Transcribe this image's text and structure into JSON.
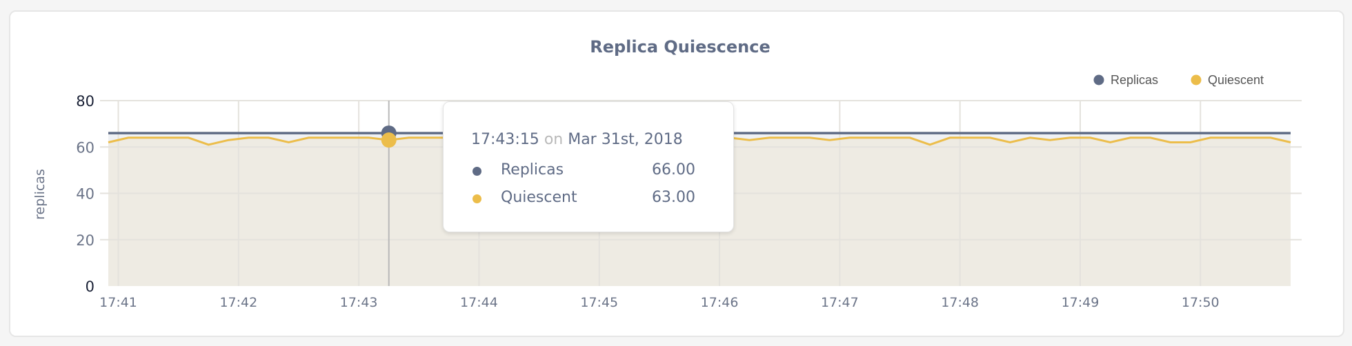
{
  "colors": {
    "replicas": "#5f6b85",
    "quiescent": "#ecbd4a",
    "quiescent_fill": "#eeebe3",
    "replicas_fill": "#eff1f4",
    "grid": "#e4e2dd"
  },
  "chart_data": {
    "type": "area",
    "title": "Replica Quiescence",
    "ylabel": "replicas",
    "xlabel": "",
    "ylim": [
      0,
      80
    ],
    "yticks": [
      "0",
      "20",
      "40",
      "60",
      "80"
    ],
    "xticks": [
      "17:41",
      "17:42",
      "17:43",
      "17:44",
      "17:45",
      "17:46",
      "17:47",
      "17:48",
      "17:49",
      "17:50"
    ],
    "grid": true,
    "legend_position": "top-right",
    "x": [
      "17:40:55",
      "17:41:05",
      "17:41:15",
      "17:41:25",
      "17:41:35",
      "17:41:45",
      "17:41:55",
      "17:42:05",
      "17:42:15",
      "17:42:25",
      "17:42:35",
      "17:42:45",
      "17:42:55",
      "17:43:05",
      "17:43:15",
      "17:43:25",
      "17:43:35",
      "17:43:45",
      "17:43:55",
      "17:44:05",
      "17:44:15",
      "17:44:25",
      "17:44:35",
      "17:44:45",
      "17:44:55",
      "17:45:05",
      "17:45:15",
      "17:45:25",
      "17:45:35",
      "17:45:45",
      "17:45:55",
      "17:46:05",
      "17:46:15",
      "17:46:25",
      "17:46:35",
      "17:46:45",
      "17:46:55",
      "17:47:05",
      "17:47:15",
      "17:47:25",
      "17:47:35",
      "17:47:45",
      "17:47:55",
      "17:48:05",
      "17:48:15",
      "17:48:25",
      "17:48:35",
      "17:48:45",
      "17:48:55",
      "17:49:05",
      "17:49:15",
      "17:49:25",
      "17:49:35",
      "17:49:45",
      "17:49:55",
      "17:50:05",
      "17:50:15",
      "17:50:25",
      "17:50:35",
      "17:50:45"
    ],
    "series": [
      {
        "name": "Replicas",
        "values": [
          66,
          66,
          66,
          66,
          66,
          66,
          66,
          66,
          66,
          66,
          66,
          66,
          66,
          66,
          66,
          66,
          66,
          66,
          66,
          66,
          66,
          66,
          66,
          66,
          66,
          66,
          66,
          66,
          66,
          66,
          66,
          66,
          66,
          66,
          66,
          66,
          66,
          66,
          66,
          66,
          66,
          66,
          66,
          66,
          66,
          66,
          66,
          66,
          66,
          66,
          66,
          66,
          66,
          66,
          66,
          66,
          66,
          66,
          66,
          66
        ]
      },
      {
        "name": "Quiescent",
        "values": [
          62,
          64,
          64,
          64,
          64,
          61,
          63,
          64,
          64,
          62,
          64,
          64,
          64,
          64,
          63,
          64,
          64,
          64,
          64,
          63,
          64,
          64,
          64,
          62,
          64,
          64,
          64,
          64,
          63,
          64,
          64,
          64,
          63,
          64,
          64,
          64,
          63,
          64,
          64,
          64,
          64,
          61,
          64,
          64,
          64,
          62,
          64,
          63,
          64,
          64,
          62,
          64,
          64,
          62,
          62,
          64,
          64,
          64,
          64,
          62
        ]
      }
    ],
    "hover_index": 14
  },
  "tooltip": {
    "time": "17:43:15",
    "on": "on",
    "date": "Mar 31st, 2018",
    "rows": [
      {
        "label": "Replicas",
        "value": "66.00"
      },
      {
        "label": "Quiescent",
        "value": "63.00"
      }
    ]
  }
}
